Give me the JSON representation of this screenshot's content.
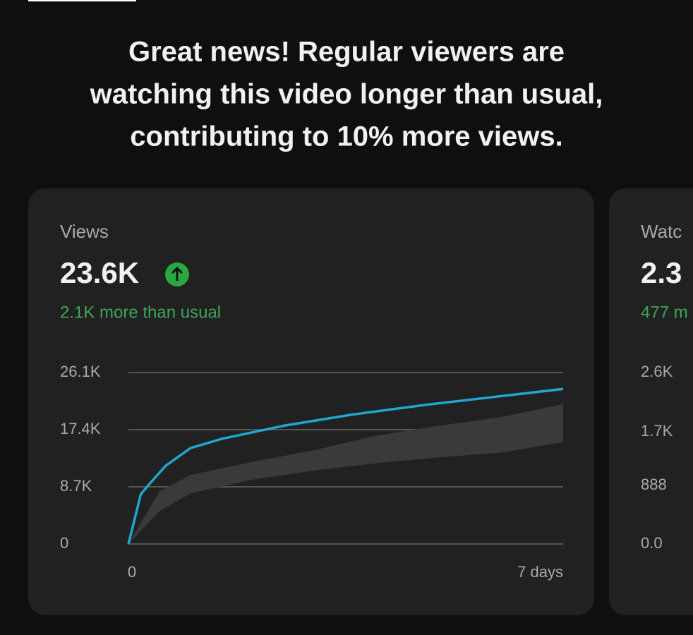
{
  "headline": [
    "Great news! Regular viewers are",
    "watching this video longer than usual,",
    "contributing to 10% more views."
  ],
  "cards": [
    {
      "label": "Views",
      "value": "23.6K",
      "note": "2.1K more than usual",
      "chart": {
        "type": "line",
        "xlim": [
          0,
          7
        ],
        "xticks": [
          0,
          {
            "value": 7,
            "label": "7 days"
          }
        ],
        "ylim": [
          0,
          26100
        ],
        "yticks": [
          0,
          {
            "value": 8700,
            "label": "8.7K"
          },
          {
            "value": 17400,
            "label": "17.4K"
          },
          {
            "value": 26100,
            "label": "26.1K"
          }
        ],
        "grid": true,
        "band": {
          "color": "#3a3a3a",
          "x": [
            0,
            0.5,
            1,
            2,
            3,
            4,
            5,
            6,
            7
          ],
          "upper": [
            0,
            8000,
            10500,
            12500,
            14300,
            16500,
            18000,
            19300,
            21300
          ],
          "lower": [
            0,
            5000,
            7700,
            9800,
            11200,
            12300,
            13200,
            13900,
            15500
          ]
        },
        "series": [
          {
            "color": "#1ea7d0",
            "x": [
              0,
              0.2,
              0.4,
              0.6,
              1,
              1.5,
              2.5,
              3.6,
              4.8,
              5.9,
              7
            ],
            "values": [
              0,
              7600,
              9800,
              11900,
              14600,
              16000,
              18000,
              19700,
              21200,
              22400,
              23600
            ]
          }
        ]
      }
    },
    {
      "label": "Watc",
      "value": "2.3",
      "note": "477 m",
      "chart": {
        "type": "line",
        "ylim": [
          0,
          2600
        ],
        "yticks": [
          {
            "value": 0,
            "label": "0.0"
          },
          888,
          {
            "value": 1700,
            "label": "1.7K"
          },
          {
            "value": 2600,
            "label": "2.6K"
          }
        ],
        "grid": false,
        "series": []
      }
    }
  ]
}
